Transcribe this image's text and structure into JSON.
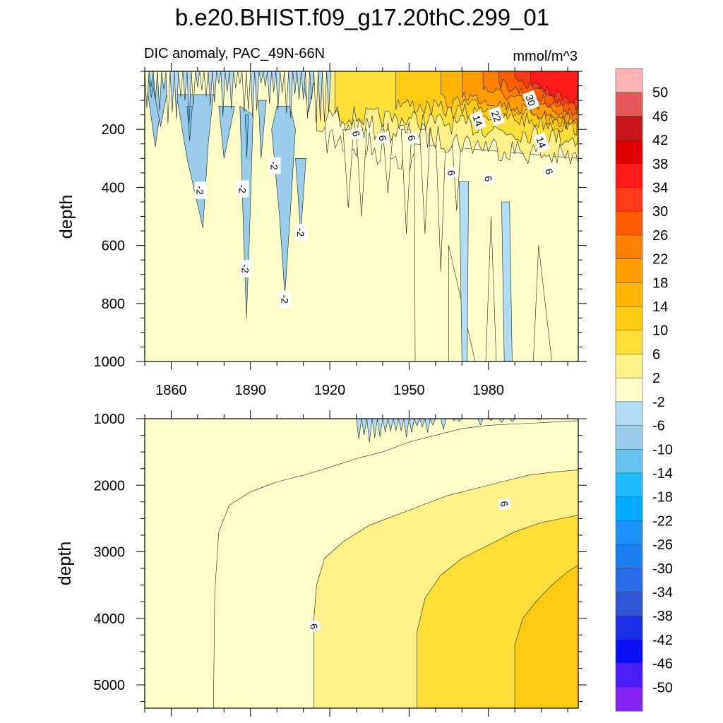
{
  "title": "b.e20.BHIST.f09_g17.20thC.299_01",
  "chart_data": {
    "type": "heatmap",
    "subtitle_left": "DIC anomaly, PAC_49N-66N",
    "subtitle_right": "mmol/m^3",
    "xlabel": "",
    "xlim": [
      1850,
      2014
    ],
    "x_ticks": [
      1860,
      1890,
      1920,
      1950,
      1980
    ],
    "panels": [
      {
        "ylabel": "depth",
        "ylim": [
          0,
          1000
        ],
        "y_ticks": [
          200,
          400,
          600,
          800,
          1000
        ],
        "contour_labels": [
          {
            "text": "-2",
            "x": 1871,
            "depth": 410
          },
          {
            "text": "-2",
            "x": 1887,
            "depth": 405
          },
          {
            "text": "-2",
            "x": 1899,
            "depth": 325
          },
          {
            "text": "-2",
            "x": 1909,
            "depth": 555
          },
          {
            "text": "-2",
            "x": 1888,
            "depth": 680
          },
          {
            "text": "-2",
            "x": 1903,
            "depth": 785
          },
          {
            "text": "6",
            "x": 1930,
            "depth": 215
          },
          {
            "text": "6",
            "x": 1940,
            "depth": 230
          },
          {
            "text": "6",
            "x": 1951,
            "depth": 230
          },
          {
            "text": "6",
            "x": 1966,
            "depth": 350
          },
          {
            "text": "6",
            "x": 1980,
            "depth": 370
          },
          {
            "text": "6",
            "x": 2003,
            "depth": 345
          },
          {
            "text": "14",
            "x": 1976,
            "depth": 170
          },
          {
            "text": "22",
            "x": 1983,
            "depth": 155
          },
          {
            "text": "30",
            "x": 1996,
            "depth": 100
          },
          {
            "text": "14",
            "x": 2000,
            "depth": 245
          }
        ]
      },
      {
        "ylabel": "depth",
        "ylim": [
          1000,
          5350
        ],
        "y_ticks": [
          1000,
          2000,
          3000,
          4000,
          5000
        ],
        "contour_labels": [
          {
            "text": "6",
            "x": 1986,
            "depth": 2280
          },
          {
            "text": "6",
            "x": 1914,
            "depth": 4120
          }
        ]
      }
    ],
    "colorbar": {
      "labels": [
        "50",
        "46",
        "42",
        "38",
        "34",
        "30",
        "26",
        "22",
        "18",
        "14",
        "10",
        "6",
        "2",
        "-2",
        "-6",
        "-10",
        "-14",
        "-18",
        "-22",
        "-26",
        "-30",
        "-34",
        "-38",
        "-42",
        "-46",
        "-50"
      ],
      "colors": [
        "#fbb3b6",
        "#e45859",
        "#c8161a",
        "#e00000",
        "#ff1a1a",
        "#ff3a1a",
        "#ff5c00",
        "#ff7f00",
        "#ff9c00",
        "#ffb400",
        "#fecb13",
        "#fede37",
        "#fdf089",
        "#fefec8",
        "#b1dcf3",
        "#98cce9",
        "#67c2f0",
        "#1fbcfb",
        "#00aaff",
        "#1e90ff",
        "#1e7ff0",
        "#2a6ae6",
        "#3056d8",
        "#1a2ee8",
        "#0b10f3",
        "#4a1ff6",
        "#8524f2"
      ]
    }
  }
}
